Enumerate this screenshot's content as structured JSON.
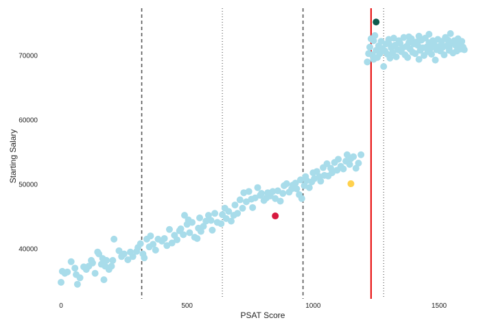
{
  "chart_data": {
    "type": "scatter",
    "xlabel": "PSAT Score",
    "ylabel": "Starting Salary",
    "xlim": [
      -50,
      1630
    ],
    "ylim": [
      32500,
      76500
    ],
    "xticks": [
      0,
      500,
      1000,
      1500
    ],
    "yticks": [
      40000,
      50000,
      60000,
      70000
    ],
    "grid": false,
    "colors": {
      "points": "#a8dcea",
      "highlight_red": "#d7193f",
      "highlight_yellow": "#ffd14d",
      "highlight_dark": "#0f5a4d",
      "cutoff_line": "#e60000",
      "reference_lines": "#555555"
    },
    "vertical_lines": [
      {
        "x": 320,
        "style": "dashed",
        "color": "#555555"
      },
      {
        "x": 640,
        "style": "dotted",
        "color": "#555555"
      },
      {
        "x": 960,
        "style": "dashed",
        "color": "#555555"
      },
      {
        "x": 1230,
        "style": "solid",
        "color": "#e60000"
      },
      {
        "x": 1280,
        "style": "dotted",
        "color": "#555555"
      }
    ],
    "highlight_points": [
      {
        "x": 850,
        "y": 45100,
        "color": "#d7193f"
      },
      {
        "x": 1150,
        "y": 50100,
        "color": "#ffd14d"
      },
      {
        "x": 1250,
        "y": 75200,
        "color": "#0f5a4d"
      }
    ],
    "series": [
      {
        "color": "#a8dcea",
        "points": [
          [
            0,
            34800
          ],
          [
            5,
            36500
          ],
          [
            15,
            36200
          ],
          [
            25,
            36400
          ],
          [
            40,
            38000
          ],
          [
            55,
            37000
          ],
          [
            60,
            36000
          ],
          [
            65,
            34500
          ],
          [
            75,
            35500
          ],
          [
            90,
            37200
          ],
          [
            100,
            36800
          ],
          [
            110,
            37300
          ],
          [
            120,
            38200
          ],
          [
            125,
            37800
          ],
          [
            135,
            36200
          ],
          [
            145,
            39500
          ],
          [
            150,
            39200
          ],
          [
            160,
            37600
          ],
          [
            165,
            38500
          ],
          [
            170,
            35200
          ],
          [
            175,
            37300
          ],
          [
            180,
            38200
          ],
          [
            190,
            36800
          ],
          [
            200,
            37300
          ],
          [
            205,
            38200
          ],
          [
            210,
            41500
          ],
          [
            230,
            39700
          ],
          [
            240,
            38800
          ],
          [
            250,
            39200
          ],
          [
            265,
            38300
          ],
          [
            275,
            39500
          ],
          [
            285,
            38800
          ],
          [
            300,
            39600
          ],
          [
            305,
            40200
          ],
          [
            315,
            40800
          ],
          [
            325,
            39200
          ],
          [
            330,
            38600
          ],
          [
            340,
            41500
          ],
          [
            350,
            40300
          ],
          [
            355,
            42000
          ],
          [
            365,
            40700
          ],
          [
            375,
            39800
          ],
          [
            385,
            41500
          ],
          [
            400,
            41200
          ],
          [
            410,
            41600
          ],
          [
            420,
            40500
          ],
          [
            430,
            43000
          ],
          [
            440,
            40900
          ],
          [
            450,
            42100
          ],
          [
            460,
            41400
          ],
          [
            470,
            42800
          ],
          [
            475,
            43100
          ],
          [
            485,
            42200
          ],
          [
            490,
            45200
          ],
          [
            500,
            43800
          ],
          [
            505,
            44500
          ],
          [
            510,
            42500
          ],
          [
            520,
            44100
          ],
          [
            530,
            41800
          ],
          [
            540,
            41600
          ],
          [
            545,
            43200
          ],
          [
            550,
            44800
          ],
          [
            555,
            42700
          ],
          [
            565,
            43500
          ],
          [
            575,
            44300
          ],
          [
            585,
            45200
          ],
          [
            595,
            44400
          ],
          [
            600,
            42900
          ],
          [
            610,
            45500
          ],
          [
            620,
            44100
          ],
          [
            635,
            43900
          ],
          [
            640,
            45300
          ],
          [
            650,
            46300
          ],
          [
            655,
            44700
          ],
          [
            665,
            45800
          ],
          [
            675,
            44300
          ],
          [
            685,
            45200
          ],
          [
            690,
            46800
          ],
          [
            700,
            45500
          ],
          [
            710,
            47600
          ],
          [
            720,
            46300
          ],
          [
            725,
            48700
          ],
          [
            735,
            47300
          ],
          [
            745,
            48900
          ],
          [
            755,
            47700
          ],
          [
            760,
            46400
          ],
          [
            770,
            47900
          ],
          [
            780,
            49500
          ],
          [
            790,
            48300
          ],
          [
            795,
            48600
          ],
          [
            805,
            47500
          ],
          [
            815,
            47900
          ],
          [
            820,
            48700
          ],
          [
            830,
            48200
          ],
          [
            840,
            48900
          ],
          [
            850,
            47800
          ],
          [
            860,
            49000
          ],
          [
            870,
            47400
          ],
          [
            880,
            48600
          ],
          [
            885,
            49800
          ],
          [
            895,
            50100
          ],
          [
            905,
            48800
          ],
          [
            915,
            49300
          ],
          [
            920,
            49900
          ],
          [
            930,
            50200
          ],
          [
            935,
            49300
          ],
          [
            945,
            48400
          ],
          [
            950,
            50700
          ],
          [
            955,
            47800
          ],
          [
            965,
            49800
          ],
          [
            970,
            51200
          ],
          [
            975,
            50600
          ],
          [
            985,
            49500
          ],
          [
            995,
            50400
          ],
          [
            1000,
            51800
          ],
          [
            1005,
            50900
          ],
          [
            1015,
            52000
          ],
          [
            1025,
            51200
          ],
          [
            1030,
            50500
          ],
          [
            1040,
            52600
          ],
          [
            1045,
            51400
          ],
          [
            1055,
            53200
          ],
          [
            1060,
            51300
          ],
          [
            1070,
            52500
          ],
          [
            1075,
            51800
          ],
          [
            1085,
            53400
          ],
          [
            1095,
            52200
          ],
          [
            1100,
            53900
          ],
          [
            1110,
            52800
          ],
          [
            1120,
            52400
          ],
          [
            1130,
            53600
          ],
          [
            1135,
            54600
          ],
          [
            1145,
            53100
          ],
          [
            1150,
            54000
          ],
          [
            1160,
            54300
          ],
          [
            1170,
            52500
          ],
          [
            1180,
            53300
          ],
          [
            1190,
            54600
          ],
          [
            1215,
            69000
          ],
          [
            1220,
            70300
          ],
          [
            1225,
            71300
          ],
          [
            1230,
            72600
          ],
          [
            1235,
            70100
          ],
          [
            1240,
            69400
          ],
          [
            1245,
            73100
          ],
          [
            1250,
            70800
          ],
          [
            1255,
            69700
          ],
          [
            1260,
            71500
          ],
          [
            1265,
            70300
          ],
          [
            1270,
            72200
          ],
          [
            1275,
            71100
          ],
          [
            1280,
            68300
          ],
          [
            1285,
            70700
          ],
          [
            1290,
            71800
          ],
          [
            1295,
            70200
          ],
          [
            1300,
            72500
          ],
          [
            1305,
            69600
          ],
          [
            1310,
            71200
          ],
          [
            1315,
            70400
          ],
          [
            1320,
            72700
          ],
          [
            1325,
            71600
          ],
          [
            1330,
            69800
          ],
          [
            1335,
            70900
          ],
          [
            1340,
            72300
          ],
          [
            1345,
            71900
          ],
          [
            1350,
            70600
          ],
          [
            1355,
            71200
          ],
          [
            1360,
            72800
          ],
          [
            1365,
            70100
          ],
          [
            1370,
            71400
          ],
          [
            1375,
            69700
          ],
          [
            1380,
            72000
          ],
          [
            1385,
            71000
          ],
          [
            1390,
            72600
          ],
          [
            1395,
            70500
          ],
          [
            1400,
            71800
          ],
          [
            1405,
            70300
          ],
          [
            1410,
            72100
          ],
          [
            1415,
            71600
          ],
          [
            1420,
            69400
          ],
          [
            1425,
            70800
          ],
          [
            1430,
            72400
          ],
          [
            1435,
            71200
          ],
          [
            1440,
            70000
          ],
          [
            1445,
            72700
          ],
          [
            1450,
            71300
          ],
          [
            1455,
            70600
          ],
          [
            1460,
            72000
          ],
          [
            1465,
            71100
          ],
          [
            1470,
            70200
          ],
          [
            1475,
            72300
          ],
          [
            1480,
            71700
          ],
          [
            1485,
            69300
          ],
          [
            1490,
            70900
          ],
          [
            1495,
            72500
          ],
          [
            1500,
            71400
          ],
          [
            1505,
            70700
          ],
          [
            1510,
            72200
          ],
          [
            1515,
            71300
          ],
          [
            1520,
            70100
          ],
          [
            1525,
            72800
          ],
          [
            1530,
            71500
          ],
          [
            1535,
            72400
          ],
          [
            1540,
            70800
          ],
          [
            1545,
            73400
          ],
          [
            1550,
            71900
          ],
          [
            1555,
            70400
          ],
          [
            1560,
            72300
          ],
          [
            1565,
            71600
          ],
          [
            1570,
            70700
          ],
          [
            1575,
            72600
          ],
          [
            1580,
            71800
          ],
          [
            1585,
            71000
          ],
          [
            1590,
            72200
          ],
          [
            1595,
            71300
          ],
          [
            1600,
            70900
          ],
          [
            1240,
            72300
          ],
          [
            1300,
            71900
          ],
          [
            1380,
            72900
          ],
          [
            1460,
            73300
          ],
          [
            1540,
            71200
          ],
          [
            1420,
            73000
          ]
        ]
      }
    ]
  }
}
